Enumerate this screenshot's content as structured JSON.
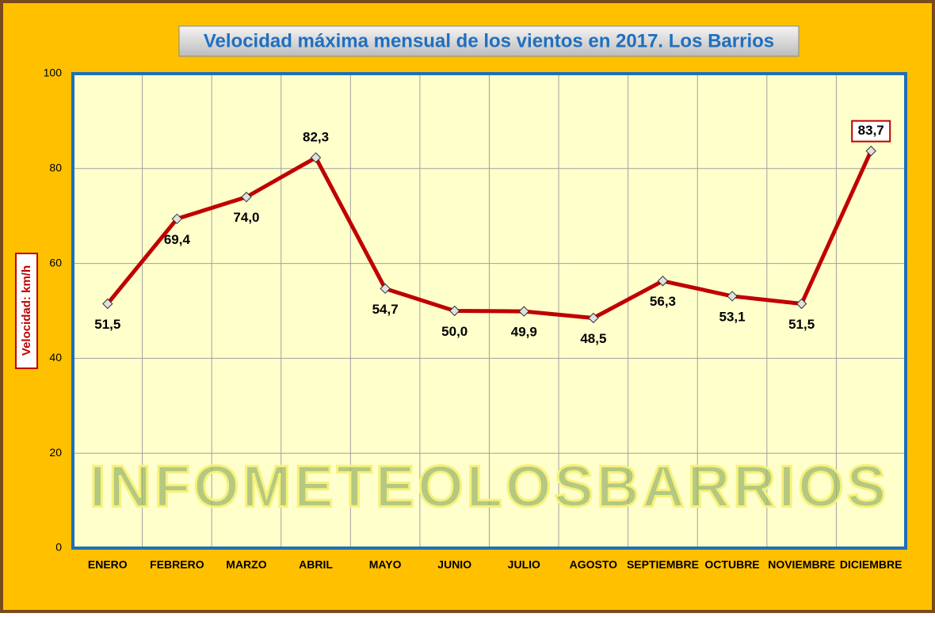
{
  "chart_data": {
    "type": "line",
    "title": "Velocidad máxima mensual de los vientos en 2017. Los Barrios",
    "y_label": "Velocidad: km/h",
    "watermark": "INFOMETEOLOSBARRIOS",
    "categories": [
      "ENERO",
      "FEBRERO",
      "MARZO",
      "ABRIL",
      "MAYO",
      "JUNIO",
      "JULIO",
      "AGOSTO",
      "SEPTIEMBRE",
      "OCTUBRE",
      "NOVIEMBRE",
      "DICIEMBRE"
    ],
    "values": [
      51.5,
      69.4,
      74.0,
      82.3,
      54.7,
      50.0,
      49.9,
      48.5,
      56.3,
      53.1,
      51.5,
      83.7
    ],
    "value_labels": [
      "51,5",
      "69,4",
      "74,0",
      "82,3",
      "54,7",
      "50,0",
      "49,9",
      "48,5",
      "56,3",
      "53,1",
      "51,5",
      "83,7"
    ],
    "color": "#C00000",
    "ylim": [
      0,
      100
    ],
    "yticks": [
      0,
      20,
      40,
      60,
      80,
      100
    ],
    "grid": true
  }
}
